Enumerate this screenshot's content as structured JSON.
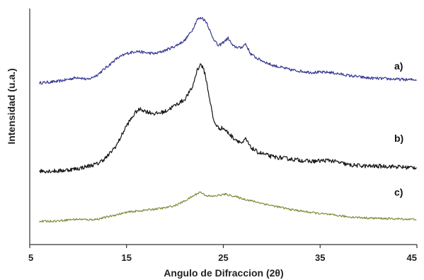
{
  "chart_data": {
    "type": "line",
    "title": "",
    "xlabel": "Angulo de Difraccion (2θ)",
    "ylabel": "Intensidad (u.a.)",
    "xlim": [
      5,
      45
    ],
    "xticks": [
      "5",
      "15",
      "25",
      "35",
      "45"
    ],
    "yticks": [],
    "grid": false,
    "legend": "inline labels at right",
    "series": [
      {
        "name": "a)",
        "color": "#3b3b96",
        "x": [
          6,
          8,
          10,
          11,
          12,
          13,
          14,
          15,
          16,
          17,
          18,
          19,
          20,
          21,
          21.8,
          22.3,
          22.8,
          23.3,
          23.8,
          24.5,
          25,
          25.5,
          26,
          26.8,
          27.3,
          27.8,
          28.5,
          30,
          32,
          34,
          36,
          38,
          40,
          42,
          44,
          45
        ],
        "y": [
          0.2,
          0.22,
          0.27,
          0.24,
          0.3,
          0.4,
          0.5,
          0.56,
          0.59,
          0.57,
          0.56,
          0.6,
          0.65,
          0.72,
          0.85,
          0.98,
          1.0,
          0.94,
          0.78,
          0.65,
          0.7,
          0.75,
          0.65,
          0.63,
          0.68,
          0.56,
          0.5,
          0.42,
          0.36,
          0.33,
          0.33,
          0.29,
          0.26,
          0.25,
          0.24,
          0.24
        ]
      },
      {
        "name": "b)",
        "color": "#151515",
        "x": [
          6,
          8,
          10,
          12,
          13,
          14,
          15,
          16,
          16.5,
          17,
          18,
          19,
          20,
          21,
          21.8,
          22.3,
          22.7,
          23.1,
          23.6,
          24,
          24.5,
          25,
          26,
          27,
          27.3,
          27.8,
          28.5,
          30,
          32,
          34,
          36,
          38,
          40,
          42,
          44,
          45
        ],
        "y": [
          0.1,
          0.1,
          0.12,
          0.16,
          0.22,
          0.32,
          0.48,
          0.6,
          0.62,
          0.6,
          0.58,
          0.6,
          0.65,
          0.7,
          0.8,
          0.95,
          1.0,
          0.92,
          0.7,
          0.52,
          0.46,
          0.46,
          0.38,
          0.33,
          0.37,
          0.3,
          0.26,
          0.22,
          0.2,
          0.18,
          0.19,
          0.15,
          0.14,
          0.14,
          0.13,
          0.13
        ]
      },
      {
        "name": "c)",
        "color": "#848c3e",
        "x": [
          6,
          8,
          9,
          10,
          11,
          12,
          13,
          14,
          15,
          16,
          17,
          18,
          19,
          20,
          21,
          21.8,
          22.6,
          23.2,
          23.8,
          24.5,
          25.2,
          26,
          27,
          28,
          29,
          30,
          32,
          34,
          36,
          38,
          40,
          42,
          44,
          45
        ],
        "y": [
          0.02,
          0.03,
          0.05,
          0.06,
          0.05,
          0.06,
          0.1,
          0.14,
          0.18,
          0.2,
          0.22,
          0.24,
          0.26,
          0.3,
          0.38,
          0.46,
          0.54,
          0.48,
          0.46,
          0.48,
          0.5,
          0.47,
          0.42,
          0.38,
          0.34,
          0.3,
          0.23,
          0.18,
          0.14,
          0.1,
          0.08,
          0.07,
          0.06,
          0.06
        ]
      }
    ]
  }
}
